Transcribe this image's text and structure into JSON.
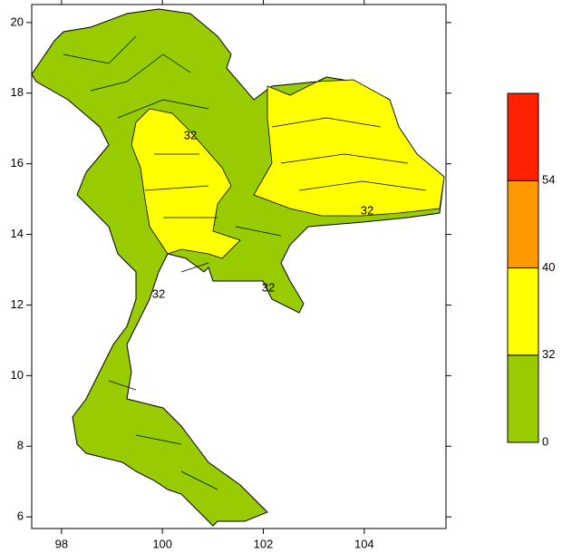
{
  "chart_data": {
    "type": "map",
    "xlim": [
      97.41,
      105.62
    ],
    "ylim": [
      5.67,
      20.51
    ],
    "xticks": [
      98,
      100,
      102,
      104
    ],
    "yticks": [
      6,
      8,
      10,
      12,
      14,
      16,
      18,
      20
    ],
    "contour_labels": [
      "32",
      "32",
      "32",
      "32"
    ],
    "colorbar": {
      "levels": [
        0,
        32,
        40,
        54
      ],
      "colors": [
        "#99cc00",
        "#ffff00",
        "#ff9900",
        "#ff2200"
      ]
    }
  }
}
